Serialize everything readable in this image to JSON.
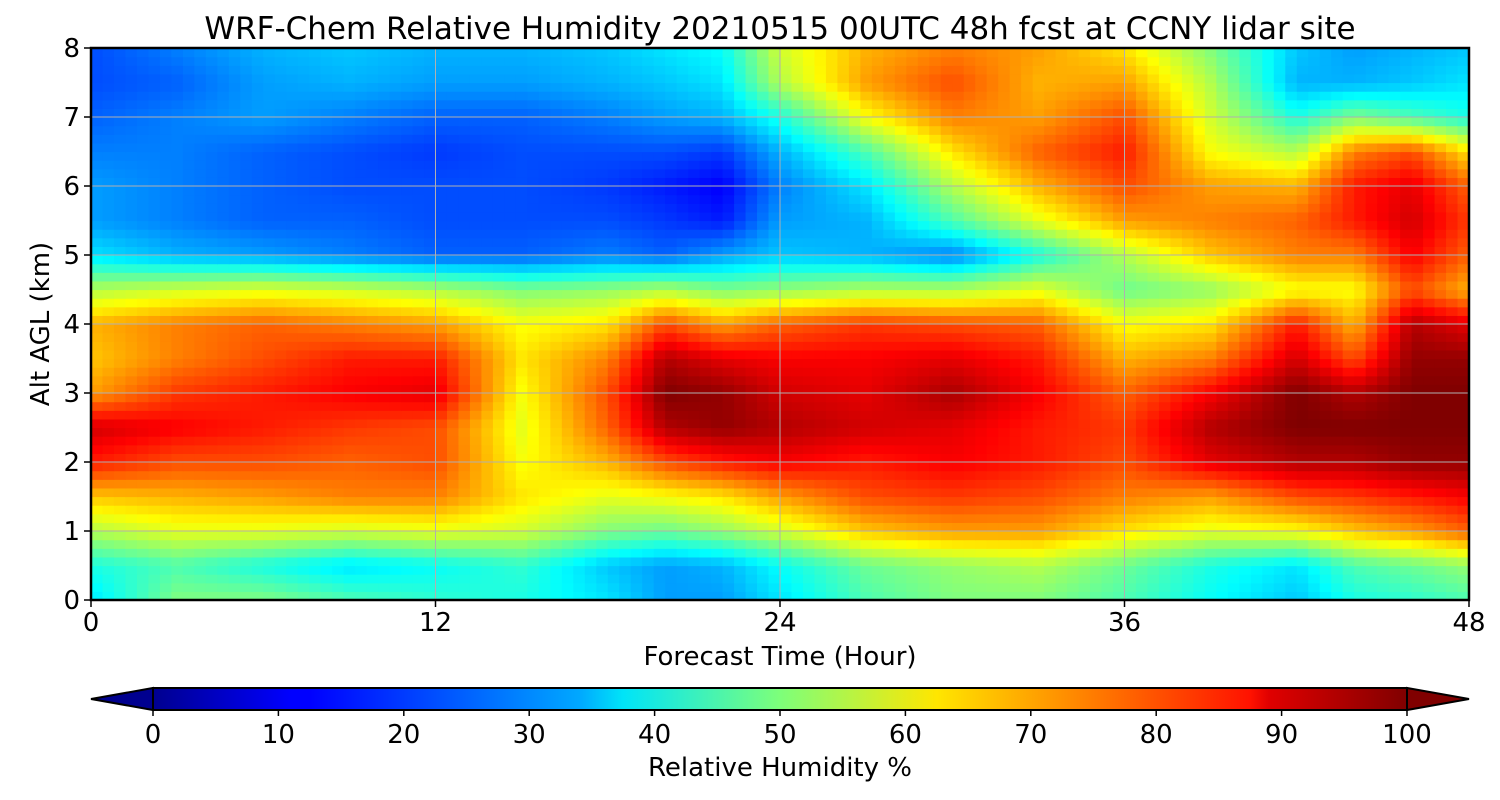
{
  "chart_data": {
    "type": "heatmap",
    "title": "WRF-Chem Relative Humidity 20210515 00UTC 48h fcst at CCNY lidar site",
    "xlabel": "Forecast Time (Hour)",
    "ylabel": "Alt AGL (km)",
    "xlim": [
      0,
      48
    ],
    "ylim": [
      0,
      8
    ],
    "xticks": [
      "0",
      "12",
      "24",
      "36",
      "48"
    ],
    "yticks": [
      "0",
      "1",
      "2",
      "3",
      "4",
      "5",
      "6",
      "7",
      "8"
    ],
    "grid": true,
    "x": [
      0,
      3,
      6,
      9,
      12,
      15,
      18,
      20,
      22,
      24,
      27,
      30,
      33,
      36,
      39,
      42,
      44,
      46,
      48
    ],
    "y": [
      0,
      0.5,
      1,
      1.5,
      2,
      2.5,
      3,
      3.5,
      4,
      4.5,
      5,
      5.5,
      6,
      6.5,
      7,
      7.5,
      8
    ],
    "z": [
      [
        35,
        50,
        50,
        45,
        42,
        40,
        35,
        28,
        28,
        35,
        45,
        50,
        50,
        45,
        38,
        32,
        40,
        42,
        45
      ],
      [
        40,
        45,
        40,
        35,
        38,
        42,
        32,
        28,
        30,
        38,
        48,
        52,
        55,
        48,
        40,
        35,
        45,
        48,
        52
      ],
      [
        55,
        60,
        60,
        58,
        60,
        58,
        50,
        48,
        52,
        58,
        68,
        72,
        72,
        65,
        60,
        62,
        68,
        72,
        78
      ],
      [
        68,
        70,
        72,
        75,
        75,
        65,
        60,
        62,
        65,
        72,
        80,
        82,
        80,
        75,
        72,
        80,
        82,
        85,
        88
      ],
      [
        85,
        80,
        80,
        78,
        80,
        62,
        70,
        80,
        85,
        88,
        85,
        88,
        85,
        80,
        90,
        95,
        95,
        98,
        98
      ],
      [
        92,
        88,
        85,
        82,
        80,
        60,
        78,
        95,
        98,
        95,
        92,
        90,
        85,
        82,
        95,
        100,
        100,
        100,
        100
      ],
      [
        72,
        82,
        85,
        88,
        90,
        62,
        80,
        100,
        98,
        92,
        90,
        96,
        88,
        78,
        88,
        100,
        95,
        100,
        100
      ],
      [
        68,
        75,
        80,
        85,
        85,
        65,
        75,
        95,
        90,
        88,
        88,
        90,
        85,
        70,
        75,
        92,
        80,
        98,
        98
      ],
      [
        70,
        75,
        78,
        75,
        72,
        62,
        65,
        80,
        72,
        78,
        82,
        80,
        78,
        62,
        65,
        85,
        70,
        95,
        90
      ],
      [
        55,
        58,
        60,
        58,
        55,
        50,
        52,
        55,
        50,
        52,
        55,
        55,
        60,
        48,
        52,
        62,
        62,
        80,
        70
      ],
      [
        35,
        30,
        28,
        25,
        22,
        22,
        25,
        22,
        28,
        32,
        30,
        25,
        40,
        55,
        68,
        75,
        75,
        88,
        78
      ],
      [
        28,
        25,
        22,
        22,
        20,
        20,
        20,
        18,
        15,
        28,
        30,
        45,
        60,
        72,
        75,
        78,
        85,
        92,
        82
      ],
      [
        28,
        25,
        22,
        20,
        20,
        20,
        18,
        15,
        12,
        25,
        35,
        55,
        70,
        80,
        72,
        70,
        85,
        90,
        78
      ],
      [
        25,
        25,
        22,
        20,
        18,
        20,
        20,
        20,
        18,
        30,
        45,
        65,
        78,
        85,
        62,
        55,
        75,
        80,
        65
      ],
      [
        22,
        25,
        28,
        25,
        22,
        22,
        25,
        28,
        30,
        40,
        62,
        75,
        72,
        80,
        58,
        40,
        50,
        45,
        40
      ],
      [
        20,
        22,
        28,
        30,
        28,
        28,
        30,
        32,
        35,
        55,
        72,
        80,
        70,
        72,
        55,
        30,
        30,
        32,
        35
      ],
      [
        20,
        25,
        30,
        32,
        30,
        30,
        32,
        35,
        38,
        58,
        70,
        75,
        72,
        65,
        50,
        32,
        28,
        30,
        32
      ]
    ],
    "colorbar": {
      "label": "Relative Humidity %",
      "min": 0,
      "max": 100,
      "ticks": [
        "0",
        "10",
        "20",
        "30",
        "40",
        "50",
        "60",
        "70",
        "80",
        "90",
        "100"
      ],
      "extend": "both",
      "colormap": "jet"
    }
  }
}
